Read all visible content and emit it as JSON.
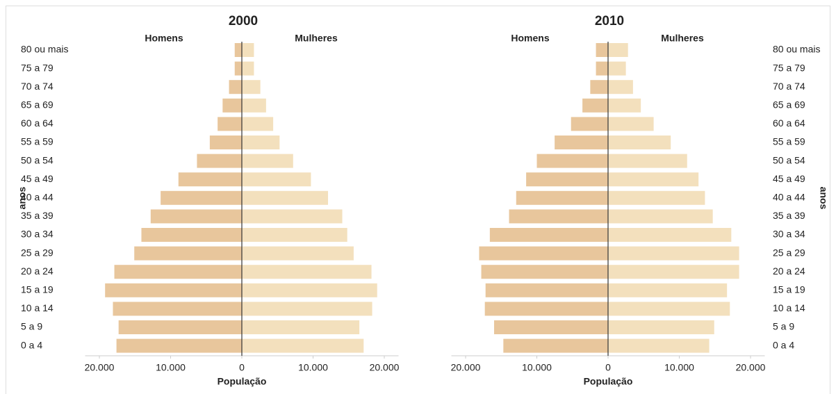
{
  "chart_data": [
    {
      "type": "pyramid",
      "title": "2000",
      "xlabel": "População",
      "ylabel": "anos",
      "categories": [
        "80 ou mais",
        "75 a 79",
        "70 a 74",
        "65 a 69",
        "60 a 64",
        "55 a 59",
        "50 a 54",
        "45 a 49",
        "40 a 44",
        "35 a 39",
        "30 a 34",
        "25 a 29",
        "20 a 24",
        "15 a 19",
        "10 a 14",
        "5 a 9",
        "0 a 4"
      ],
      "series": [
        {
          "name": "Homens",
          "color": "#e8c69c",
          "values": [
            1000,
            1000,
            1800,
            2700,
            3400,
            4500,
            6300,
            8900,
            11400,
            12800,
            14100,
            15100,
            17900,
            19200,
            18100,
            17300,
            17600
          ]
        },
        {
          "name": "Mulheres",
          "color": "#f3e0bd",
          "values": [
            1700,
            1700,
            2600,
            3400,
            4400,
            5300,
            7200,
            9700,
            12100,
            14100,
            14800,
            15700,
            18200,
            19000,
            18300,
            16500,
            17100
          ]
        }
      ],
      "xlim": [
        -22000,
        22000
      ],
      "xticks": [
        {
          "value": -20000,
          "label": "20.000"
        },
        {
          "value": -10000,
          "label": "10.000"
        },
        0,
        {
          "value": 10000,
          "label": "10.000"
        },
        {
          "value": 20000,
          "label": "20.000"
        }
      ]
    },
    {
      "type": "pyramid",
      "title": "2010",
      "xlabel": "População",
      "ylabel": "anos",
      "categories": [
        "80 ou mais",
        "75 a 79",
        "70 a 74",
        "65 a 69",
        "60 a 64",
        "55 a 59",
        "50 a 54",
        "45 a 49",
        "40 a 44",
        "35 a 39",
        "30 a 34",
        "25 a 29",
        "20 a 24",
        "15 a 19",
        "10 a 14",
        "5 a 9",
        "0 a 4"
      ],
      "series": [
        {
          "name": "Homens",
          "color": "#e8c69c",
          "values": [
            1700,
            1700,
            2500,
            3600,
            5200,
            7500,
            10000,
            11500,
            12900,
            13900,
            16600,
            18100,
            17800,
            17200,
            17300,
            16000,
            14700
          ]
        },
        {
          "name": "Mulheres",
          "color": "#f3e0bd",
          "values": [
            2800,
            2500,
            3500,
            4600,
            6400,
            8800,
            11100,
            12700,
            13600,
            14700,
            17300,
            18400,
            18400,
            16700,
            17100,
            14900,
            14200
          ]
        }
      ],
      "xlim": [
        -22000,
        22000
      ],
      "xticks": [
        {
          "value": -20000,
          "label": "20.000"
        },
        {
          "value": -10000,
          "label": "10.000"
        },
        0,
        {
          "value": 10000,
          "label": "10.000"
        },
        {
          "value": 20000,
          "label": "20.000"
        }
      ]
    }
  ]
}
